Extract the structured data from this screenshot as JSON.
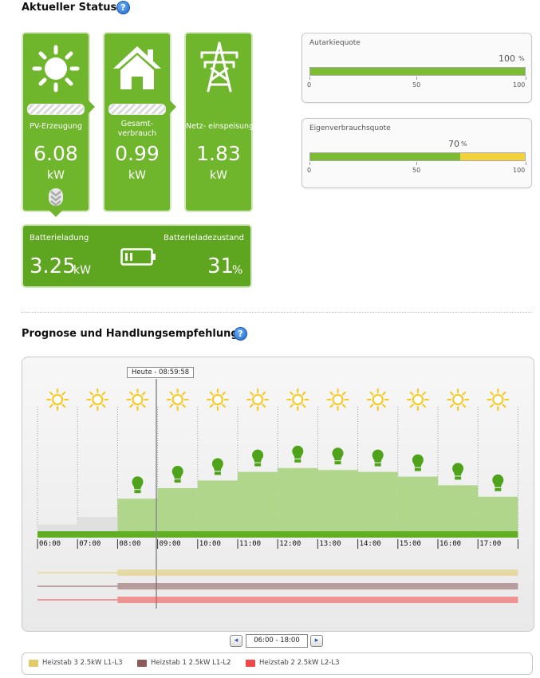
{
  "status": {
    "title": "Aktueller Status",
    "help": "?",
    "pv": {
      "label": "PV-Erzeugung",
      "value": "6.08",
      "unit": "kW"
    },
    "consumption": {
      "label_line1": "Gesamt-",
      "label_line2": "verbrauch",
      "value": "0.99",
      "unit": "kW"
    },
    "grid": {
      "label": "Netz- einspeisung",
      "value": "1.83",
      "unit": "kW"
    },
    "battery": {
      "charge_label": "Batterieladung",
      "charge_value": "3.25",
      "charge_unit": "kW",
      "soc_label": "Batterieladezustand",
      "soc_value": "31",
      "soc_unit": "%"
    }
  },
  "autarkie": {
    "title": "Autarkiequote",
    "value": "100",
    "unit": "%",
    "fraction": 1.0,
    "ticks": [
      "0",
      "50",
      "100"
    ],
    "color": "#7cbc33"
  },
  "eigenverbrauch": {
    "title": "Eigenverbrauchsquote",
    "value": "70",
    "unit": "%",
    "fraction": 0.7,
    "ticks": [
      "0",
      "50",
      "100"
    ],
    "color": "#7cbc33",
    "rest_color": "#f2d23a"
  },
  "forecast": {
    "title": "Prognose und Handlungsempfehlung",
    "help": "?",
    "now_label": "Heute - 08:59:58",
    "hours": [
      "06:00",
      "07:00",
      "08:00",
      "09:00",
      "10:00",
      "11:00",
      "12:00",
      "13:00",
      "14:00",
      "15:00",
      "16:00",
      "17:00"
    ],
    "weather_icons": [
      "sun-icon",
      "sun-icon",
      "sun-icon",
      "sun-icon",
      "sun-icon",
      "sun-icon",
      "sun-icon",
      "sun-icon",
      "sun-icon",
      "sun-icon",
      "sun-icon",
      "sun-icon"
    ],
    "production_levels": [
      0.07,
      0.15,
      0.34,
      0.45,
      0.53,
      0.62,
      0.66,
      0.64,
      0.62,
      0.57,
      0.48,
      0.36
    ],
    "recommendation_hours": [
      "08:00",
      "09:00",
      "10:00",
      "11:00",
      "12:00",
      "13:00",
      "14:00",
      "15:00",
      "16:00",
      "17:00"
    ],
    "range_label": "06:00 - 18:00",
    "prev_label": "◂",
    "next_label": "▸",
    "colors": {
      "past": "#e0e0e0",
      "future": "#afd68a",
      "baseline": "#5fae24",
      "bulb": "#4fa31a",
      "sun": "#f7c81b"
    }
  },
  "legend": [
    {
      "name": "Heizstab 3 2.5kW L1-L3",
      "color": "#e0cc68"
    },
    {
      "name": "Heizstab 1 2.5kW L1-L2",
      "color": "#8e5b5b"
    },
    {
      "name": "Heizstab 2 2.5kW L2-L3",
      "color": "#f04848"
    }
  ]
}
